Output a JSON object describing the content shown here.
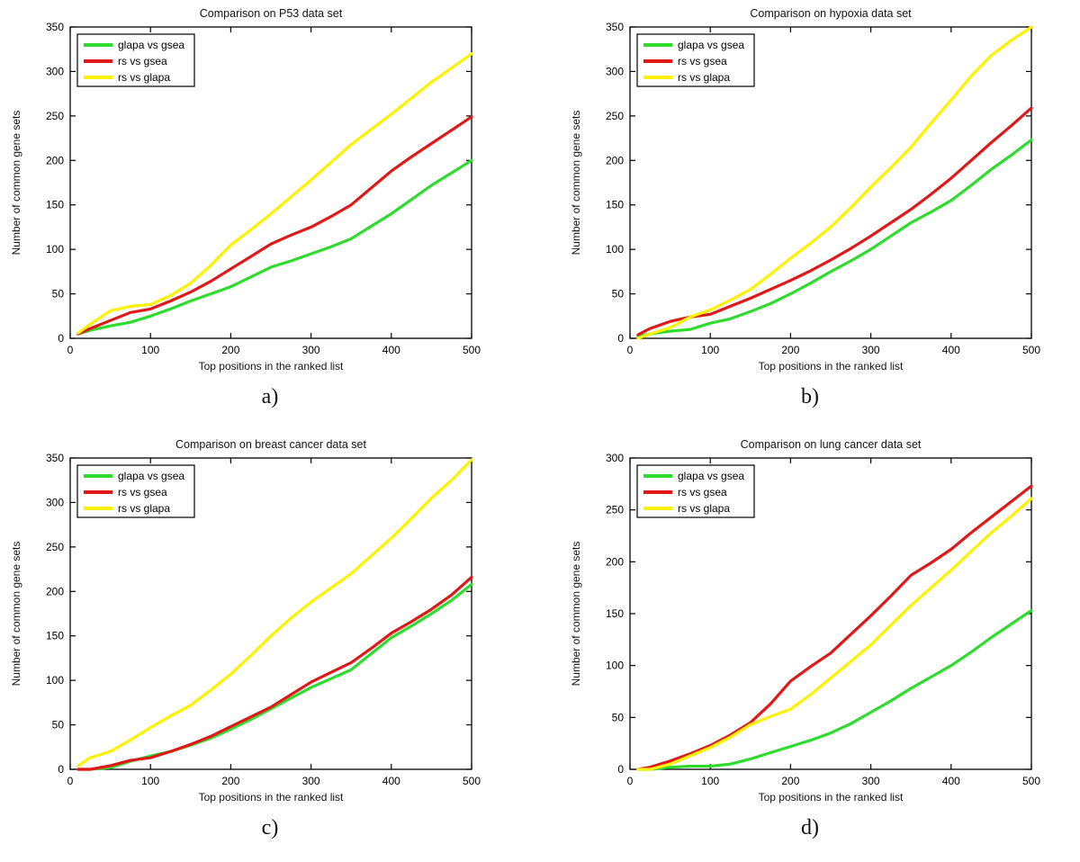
{
  "figure": {
    "sublabels": [
      "a)",
      "b)",
      "c)",
      "d)"
    ]
  },
  "colors": {
    "green": "#2EDC2E",
    "red": "#E01818",
    "yellow": "#FFF200",
    "axis": "#000000",
    "background": "#FFFFFF"
  },
  "chart_data": [
    {
      "type": "line",
      "title": "Comparison on P53 data set",
      "xlabel": "Top positions in the ranked list",
      "ylabel": "Number of common gene sets",
      "xlim": [
        0,
        500
      ],
      "ylim": [
        0,
        350
      ],
      "xticks": [
        0,
        100,
        200,
        300,
        400,
        500
      ],
      "yticks": [
        0,
        50,
        100,
        150,
        200,
        250,
        300,
        350
      ],
      "grid": false,
      "legend_position": "top-left",
      "x": [
        10,
        25,
        50,
        75,
        100,
        125,
        150,
        175,
        200,
        225,
        250,
        275,
        300,
        325,
        350,
        375,
        400,
        425,
        450,
        475,
        500
      ],
      "series": [
        {
          "name": "glapa vs gsea",
          "color_key": "green",
          "values": [
            5,
            9,
            14,
            18,
            25,
            33,
            42,
            50,
            58,
            69,
            80,
            87,
            95,
            103,
            112,
            126,
            140,
            156,
            172,
            186,
            200
          ]
        },
        {
          "name": "rs vs gsea",
          "color_key": "red",
          "values": [
            5,
            11,
            20,
            29,
            33,
            42,
            52,
            64,
            78,
            92,
            106,
            116,
            125,
            137,
            150,
            169,
            188,
            204,
            219,
            234,
            249
          ]
        },
        {
          "name": "rs vs glapa",
          "color_key": "yellow",
          "values": [
            6,
            16,
            31,
            36,
            38,
            48,
            62,
            82,
            105,
            122,
            140,
            159,
            178,
            198,
            218,
            235,
            252,
            270,
            288,
            304,
            320
          ]
        }
      ]
    },
    {
      "type": "line",
      "title": "Comparison on hypoxia data set",
      "xlabel": "Top positions in the ranked list",
      "ylabel": "Number of common gene sets",
      "xlim": [
        0,
        500
      ],
      "ylim": [
        0,
        350
      ],
      "xticks": [
        0,
        100,
        200,
        300,
        400,
        500
      ],
      "yticks": [
        0,
        50,
        100,
        150,
        200,
        250,
        300,
        350
      ],
      "grid": false,
      "legend_position": "top-left",
      "x": [
        10,
        25,
        50,
        75,
        100,
        125,
        150,
        175,
        200,
        225,
        250,
        275,
        300,
        325,
        350,
        375,
        400,
        425,
        450,
        475,
        500
      ],
      "series": [
        {
          "name": "glapa vs gsea",
          "color_key": "green",
          "values": [
            2,
            5,
            8,
            10,
            17,
            22,
            30,
            39,
            50,
            62,
            75,
            87,
            100,
            115,
            130,
            142,
            155,
            172,
            190,
            206,
            223
          ]
        },
        {
          "name": "rs vs gsea",
          "color_key": "red",
          "values": [
            4,
            11,
            19,
            24,
            27,
            36,
            45,
            55,
            65,
            76,
            88,
            101,
            115,
            130,
            145,
            162,
            180,
            200,
            220,
            239,
            259
          ]
        },
        {
          "name": "rs vs glapa",
          "color_key": "yellow",
          "values": [
            0,
            5,
            12,
            24,
            32,
            43,
            55,
            72,
            90,
            107,
            125,
            147,
            170,
            192,
            215,
            242,
            268,
            295,
            318,
            335,
            350
          ]
        }
      ]
    },
    {
      "type": "line",
      "title": "Comparison on breast cancer data set",
      "xlabel": "Top positions in the ranked list",
      "ylabel": "Number of common gene sets",
      "xlim": [
        0,
        500
      ],
      "ylim": [
        0,
        350
      ],
      "xticks": [
        0,
        100,
        200,
        300,
        400,
        500
      ],
      "yticks": [
        0,
        50,
        100,
        150,
        200,
        250,
        300,
        350
      ],
      "grid": false,
      "legend_position": "top-left",
      "x": [
        10,
        25,
        50,
        75,
        100,
        125,
        150,
        175,
        200,
        225,
        250,
        275,
        300,
        325,
        350,
        375,
        400,
        425,
        450,
        475,
        500
      ],
      "series": [
        {
          "name": "glapa vs gsea",
          "color_key": "green",
          "values": [
            0,
            0,
            2,
            9,
            15,
            20,
            27,
            35,
            45,
            56,
            68,
            80,
            92,
            102,
            112,
            130,
            148,
            161,
            175,
            190,
            208
          ]
        },
        {
          "name": "rs vs gsea",
          "color_key": "red",
          "values": [
            0,
            0,
            4,
            10,
            13,
            20,
            28,
            37,
            48,
            59,
            70,
            84,
            98,
            109,
            120,
            136,
            153,
            166,
            180,
            196,
            216
          ]
        },
        {
          "name": "rs vs glapa",
          "color_key": "yellow",
          "values": [
            4,
            13,
            20,
            33,
            47,
            60,
            72,
            89,
            107,
            128,
            150,
            170,
            188,
            204,
            220,
            240,
            260,
            282,
            305,
            325,
            348
          ]
        }
      ]
    },
    {
      "type": "line",
      "title": "Comparison on lung cancer data set",
      "xlabel": "Top positions in the ranked list",
      "ylabel": "Number of common gene sets",
      "xlim": [
        0,
        500
      ],
      "ylim": [
        0,
        300
      ],
      "xticks": [
        0,
        100,
        200,
        300,
        400,
        500
      ],
      "yticks": [
        0,
        50,
        100,
        150,
        200,
        250,
        300
      ],
      "grid": false,
      "legend_position": "top-left",
      "x": [
        10,
        25,
        50,
        75,
        100,
        125,
        150,
        175,
        200,
        225,
        250,
        275,
        300,
        325,
        350,
        375,
        400,
        425,
        450,
        475,
        500
      ],
      "series": [
        {
          "name": "glapa vs gsea",
          "color_key": "green",
          "values": [
            0,
            0,
            2,
            3,
            3,
            5,
            10,
            16,
            22,
            28,
            35,
            44,
            55,
            66,
            78,
            89,
            100,
            113,
            127,
            140,
            153
          ]
        },
        {
          "name": "rs vs gsea",
          "color_key": "red",
          "values": [
            0,
            2,
            8,
            15,
            23,
            33,
            45,
            63,
            85,
            99,
            112,
            130,
            148,
            167,
            187,
            199,
            212,
            228,
            243,
            258,
            273
          ]
        },
        {
          "name": "rs vs glapa",
          "color_key": "yellow",
          "values": [
            0,
            0,
            5,
            13,
            21,
            31,
            43,
            51,
            58,
            72,
            88,
            104,
            120,
            139,
            158,
            175,
            192,
            210,
            228,
            244,
            261
          ]
        }
      ]
    }
  ]
}
